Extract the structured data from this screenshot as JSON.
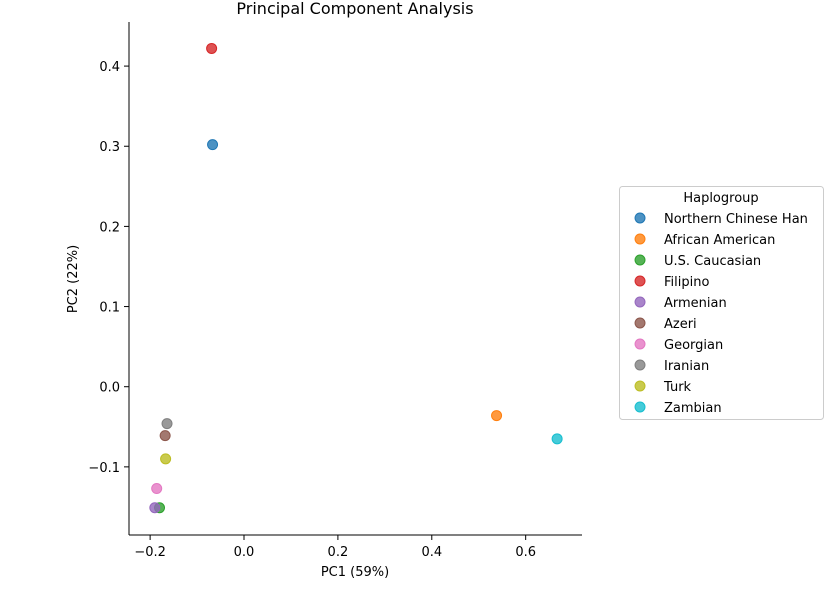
{
  "chart_data": {
    "type": "scatter",
    "title": "Principal Component Analysis",
    "xlabel": "PC1 (59%)",
    "ylabel": "PC2 (22%)",
    "xlim": [
      -0.245,
      0.72
    ],
    "ylim": [
      -0.185,
      0.455
    ],
    "xticks": [
      -0.2,
      0.0,
      0.2,
      0.4,
      0.6
    ],
    "xtick_labels": [
      "−0.2",
      "0.0",
      "0.2",
      "0.4",
      "0.6"
    ],
    "yticks": [
      -0.1,
      0.0,
      0.1,
      0.2,
      0.3,
      0.4
    ],
    "ytick_labels": [
      "−0.1",
      "0.0",
      "0.1",
      "0.2",
      "0.3",
      "0.4"
    ],
    "grid": false,
    "legend": {
      "title": "Haplogroup",
      "placement": "outside-right"
    },
    "series": [
      {
        "name": "Northern Chinese Han",
        "color": "#1f77b4",
        "x": -0.067,
        "y": 0.302
      },
      {
        "name": "African American",
        "color": "#ff7f0e",
        "x": 0.538,
        "y": -0.036
      },
      {
        "name": "U.S. Caucasian",
        "color": "#2ca02c",
        "x": -0.18,
        "y": -0.151
      },
      {
        "name": "Filipino",
        "color": "#d62728",
        "x": -0.069,
        "y": 0.422
      },
      {
        "name": "Armenian",
        "color": "#9467bd",
        "x": -0.19,
        "y": -0.151
      },
      {
        "name": "Azeri",
        "color": "#8c564b",
        "x": -0.168,
        "y": -0.061
      },
      {
        "name": "Georgian",
        "color": "#e377c2",
        "x": -0.186,
        "y": -0.127
      },
      {
        "name": "Iranian",
        "color": "#7f7f7f",
        "x": -0.164,
        "y": -0.046
      },
      {
        "name": "Turk",
        "color": "#bcbd22",
        "x": -0.167,
        "y": -0.09
      },
      {
        "name": "Zambian",
        "color": "#17becf",
        "x": 0.667,
        "y": -0.065
      }
    ]
  }
}
